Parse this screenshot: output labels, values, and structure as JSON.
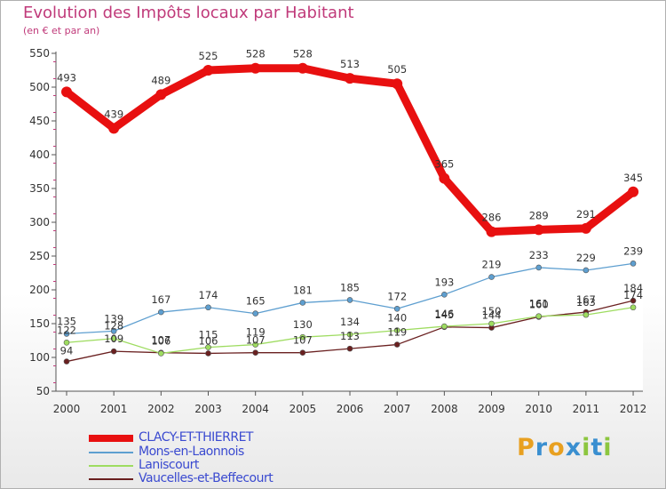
{
  "title": "Evolution des Impôts locaux par Habitant",
  "subtitle": "(en € et par an)",
  "logo": {
    "letters": [
      "P",
      "r",
      "o",
      "x",
      "i",
      "t",
      "i"
    ],
    "colors": [
      "#e8a020",
      "#3a8fd0",
      "#e8a020",
      "#3a8fd0",
      "#8cc63f",
      "#3a8fd0",
      "#8cc63f"
    ]
  },
  "chart_data": {
    "type": "line",
    "categories": [
      "2000",
      "2001",
      "2002",
      "2003",
      "2004",
      "2005",
      "2006",
      "2007",
      "2008",
      "2009",
      "2010",
      "2011",
      "2012"
    ],
    "ylim": [
      50,
      550
    ],
    "yticks": [
      50,
      100,
      150,
      200,
      250,
      300,
      350,
      400,
      450,
      500,
      550
    ],
    "grid": false,
    "series": [
      {
        "name": "CLACY-ET-THIERRET",
        "color": "#e81010",
        "values": [
          493,
          439,
          489,
          525,
          528,
          528,
          513,
          505,
          365,
          286,
          289,
          291,
          345
        ],
        "labels": [
          "493",
          "439",
          "489",
          "525",
          "528",
          "528",
          "513",
          "505",
          "365",
          "286",
          "289",
          "291",
          "345"
        ]
      },
      {
        "name": "Mons-en-Laonnois",
        "color": "#5e9fd0",
        "values": [
          135,
          139,
          167,
          174,
          165,
          181,
          185,
          172,
          193,
          219,
          233,
          229,
          239
        ],
        "labels": [
          "135",
          "139",
          "167",
          "174",
          "165",
          "181",
          "185",
          "172",
          "193",
          "219",
          "233",
          "229",
          "239"
        ]
      },
      {
        "name": "Laniscourt",
        "color": "#9edc60",
        "values": [
          122,
          128,
          106,
          115,
          119,
          130,
          134,
          140,
          146,
          150,
          161,
          163,
          174
        ],
        "labels": [
          "122",
          "128",
          "106",
          "115",
          "119",
          "130",
          "134",
          "140",
          "146",
          "150",
          "161",
          "163",
          "174"
        ]
      },
      {
        "name": "Vaucelles-et-Beffecourt",
        "color": "#6a2020",
        "values": [
          94,
          109,
          107,
          106,
          107,
          107,
          113,
          119,
          145,
          144,
          160,
          167,
          184
        ],
        "labels": [
          "94",
          "109",
          "107",
          "106",
          "107",
          "107",
          "113",
          "119",
          "145",
          "144",
          "160",
          "167",
          "184"
        ]
      }
    ]
  },
  "legend": [
    {
      "label": "CLACY-ET-THIERRET",
      "color": "#e81010",
      "text_color": "#3a4ad0"
    },
    {
      "label": "Mons-en-Laonnois",
      "color": "#5e9fd0",
      "text_color": "#3a4ad0"
    },
    {
      "label": "Laniscourt",
      "color": "#9edc60",
      "text_color": "#3a4ad0"
    },
    {
      "label": "Vaucelles-et-Beffecourt",
      "color": "#6a2020",
      "text_color": "#3a4ad0"
    }
  ]
}
